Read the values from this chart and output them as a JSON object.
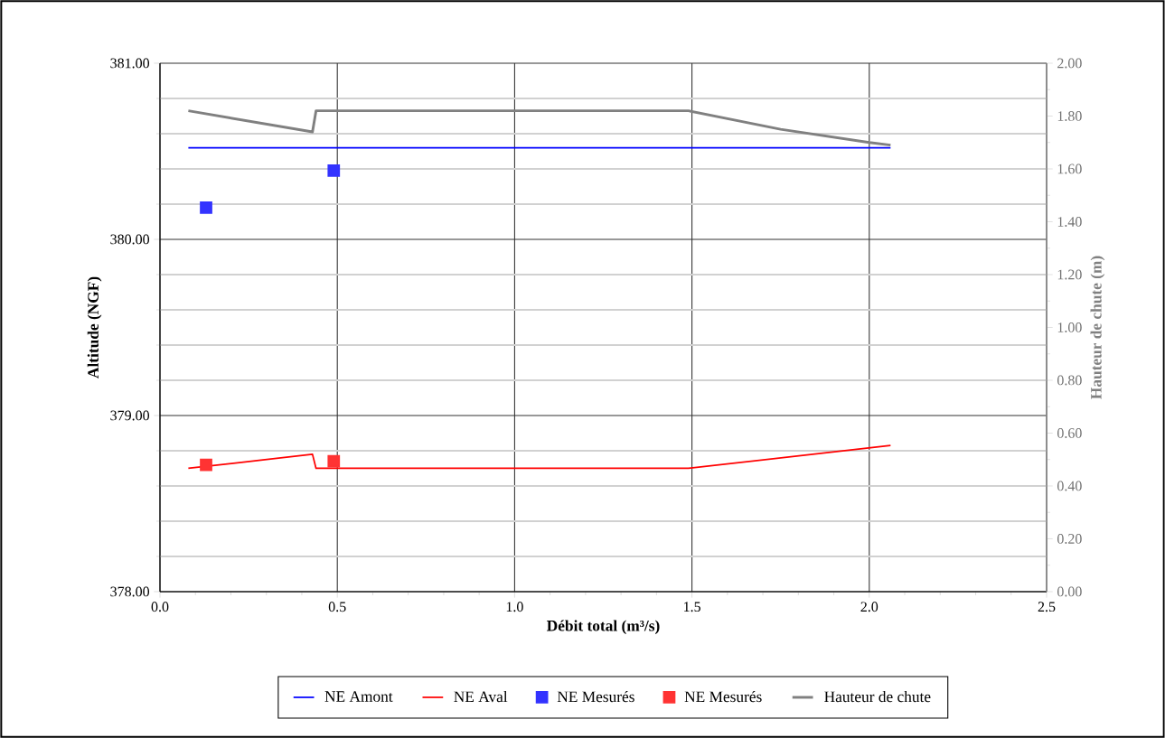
{
  "chart_data": {
    "type": "line",
    "xlabel": "Débit total (m³/s)",
    "ylabel": "Altitude (NGF)",
    "y2label": "Hauteur de chute (m)",
    "xlim": [
      0,
      2.5
    ],
    "xticks": [
      {
        "value": 0,
        "label": "0.0"
      },
      {
        "value": 0.5,
        "label": "0.5"
      },
      {
        "value": 1,
        "label": "1.0"
      },
      {
        "value": 1.5,
        "label": "1.5"
      },
      {
        "value": 2,
        "label": "2.0"
      },
      {
        "value": 2.5,
        "label": "2.5"
      }
    ],
    "ylim": [
      378,
      381
    ],
    "yticks": [
      {
        "value": 378,
        "label": "378.00"
      },
      {
        "value": 379,
        "label": "379.00"
      },
      {
        "value": 380,
        "label": "380.00"
      },
      {
        "value": 381,
        "label": "381.00"
      }
    ],
    "y2lim": [
      0,
      2
    ],
    "y2ticks": [
      {
        "value": 0,
        "label": "0.00"
      },
      {
        "value": 0.2,
        "label": "0.20"
      },
      {
        "value": 0.4,
        "label": "0.40"
      },
      {
        "value": 0.6,
        "label": "0.60"
      },
      {
        "value": 0.8,
        "label": "0.80"
      },
      {
        "value": 1,
        "label": "1.00"
      },
      {
        "value": 1.2,
        "label": "1.20"
      },
      {
        "value": 1.4,
        "label": "1.40"
      },
      {
        "value": 1.6,
        "label": "1.60"
      },
      {
        "value": 1.8,
        "label": "1.80"
      },
      {
        "value": 2,
        "label": "2.00"
      }
    ],
    "grid": true,
    "legend": "bottom",
    "series": [
      {
        "name": "NE Amont",
        "color": "#0000ff",
        "marker": "none",
        "x": [
          0.08,
          2.06
        ],
        "values": [
          380.52,
          380.52
        ]
      },
      {
        "name": "NE Aval",
        "color": "#ff0000",
        "marker": "none",
        "x": [
          0.08,
          0.43,
          0.44,
          1.49,
          2.06
        ],
        "values": [
          378.7,
          378.78,
          378.7,
          378.7,
          378.83
        ]
      },
      {
        "name": "NE Mesurés",
        "color": "#3333ff",
        "type": "scatter",
        "marker": "square",
        "x": [
          0.13,
          0.49
        ],
        "values": [
          380.18,
          380.39
        ]
      },
      {
        "name": "NE Mesurés",
        "color": "#ff3333",
        "type": "scatter",
        "marker": "square",
        "x": [
          0.13,
          0.49
        ],
        "values": [
          378.72,
          378.74
        ]
      },
      {
        "name": "Hauteur de chute",
        "color": "#808080",
        "marker": "none",
        "axis": "y2",
        "x": [
          0.08,
          0.43,
          0.44,
          1.49,
          1.75,
          2.0,
          2.06
        ],
        "values": [
          1.82,
          1.74,
          1.82,
          1.82,
          1.75,
          1.7,
          1.69
        ]
      }
    ]
  }
}
